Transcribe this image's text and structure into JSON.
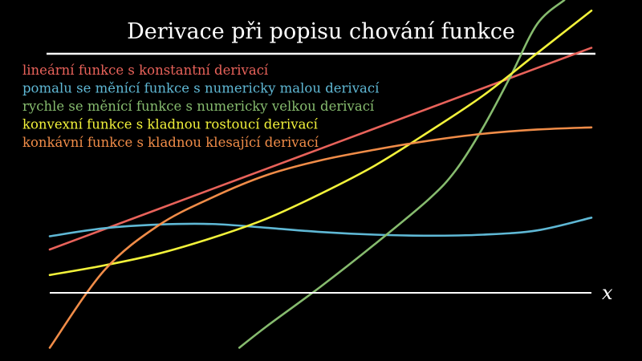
{
  "chart_data": {
    "type": "line",
    "title": "Derivace při popisu chování funkce",
    "xlabel": "x",
    "ylabel": "",
    "xlim": [
      0,
      10
    ],
    "ylim": [
      -1.5,
      5.3
    ],
    "grid": false,
    "legend_position": "top-left",
    "colors": {
      "background": "#000000",
      "text": "#ffffff",
      "axis": "#ffffff"
    },
    "series": [
      {
        "name": "lineární funkce s konstantní derivací",
        "color": "#e8625a",
        "x": [
          0,
          1,
          2,
          3,
          4,
          5,
          6,
          7,
          8,
          9,
          10
        ],
        "y": [
          0.6,
          0.98,
          1.36,
          1.74,
          2.12,
          2.5,
          2.88,
          3.26,
          3.64,
          4.02,
          4.4
        ]
      },
      {
        "name": "pomalu se měnící funkce s numericky malou derivací",
        "color": "#5fb8d5",
        "x": [
          0,
          1,
          2,
          3,
          4,
          5,
          6,
          7,
          8,
          9,
          10
        ],
        "y": [
          0.85,
          1.0,
          1.07,
          1.08,
          1.01,
          0.93,
          0.88,
          0.86,
          0.88,
          0.96,
          1.2
        ]
      },
      {
        "name": "rychle se měnící funkce s numericky velkou derivací",
        "color": "#86bb6e",
        "x": [
          3.5,
          4,
          5,
          6,
          7,
          7.5,
          8,
          8.5,
          9,
          9.5
        ],
        "y": [
          -1.25,
          -0.85,
          -0.1,
          0.7,
          1.55,
          2.1,
          2.9,
          3.85,
          4.85,
          5.3
        ]
      },
      {
        "name": "konvexní funkce s kladnou rostoucí derivací",
        "color": "#f2f23a",
        "x": [
          0,
          1,
          2,
          3,
          4,
          5,
          6,
          7,
          8,
          9,
          10
        ],
        "y": [
          0.12,
          0.3,
          0.52,
          0.82,
          1.18,
          1.65,
          2.18,
          2.82,
          3.5,
          4.3,
          5.1
        ]
      },
      {
        "name": "konkávní funkce s kladnou klesající derivací",
        "color": "#f08c48",
        "x": [
          0,
          1,
          2,
          3,
          4,
          5,
          6,
          7,
          8,
          9,
          10
        ],
        "y": [
          -1.25,
          0.2,
          1.05,
          1.58,
          2.0,
          2.28,
          2.48,
          2.65,
          2.78,
          2.86,
          2.9
        ]
      }
    ]
  }
}
